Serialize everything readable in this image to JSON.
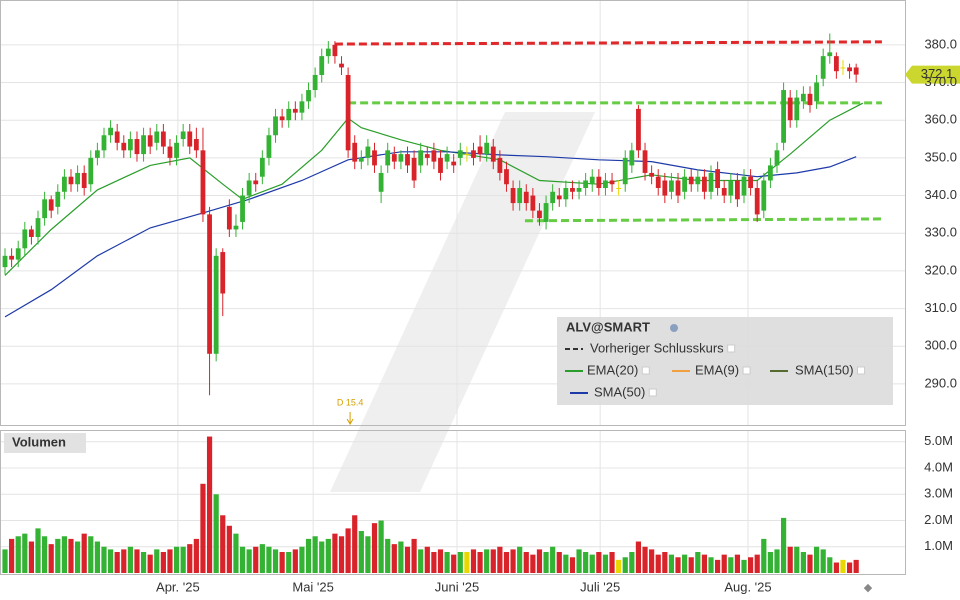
{
  "chart_data": {
    "type": "candlestick",
    "title": "ALV@SMART",
    "xlim": [
      -0.76,
      136.4
    ],
    "xticks": [
      {
        "value": 26.2,
        "label": "Apr. '25"
      },
      {
        "value": 46.7,
        "label": "Mai '25"
      },
      {
        "value": 68.5,
        "label": "Juni '25"
      },
      {
        "value": 90.2,
        "label": "Juli '25"
      },
      {
        "value": 112.6,
        "label": "Aug. '25"
      }
    ],
    "ylim": [
      279.1,
      391.9
    ],
    "yticks": [
      {
        "value": 290,
        "label": "290.0"
      },
      {
        "value": 300,
        "label": "300.0"
      },
      {
        "value": 310,
        "label": "310.0"
      },
      {
        "value": 320,
        "label": "320.0"
      },
      {
        "value": 330,
        "label": "330.0"
      },
      {
        "value": 340,
        "label": "340.0"
      },
      {
        "value": 350,
        "label": "350.0"
      },
      {
        "value": 360,
        "label": "360.0"
      },
      {
        "value": 370,
        "label": "370.0"
      },
      {
        "value": 380,
        "label": "380.0"
      }
    ],
    "grid": true,
    "up_color": "#33b233",
    "down_color": "#d9232a",
    "flat_color": "#e8d800",
    "open": [
      321,
      324,
      323,
      326,
      331,
      329,
      334,
      339,
      337,
      341,
      345,
      343,
      346,
      343,
      350,
      352,
      356,
      357,
      354,
      352,
      355,
      351,
      356,
      354,
      357,
      353,
      350,
      355,
      357,
      355,
      352,
      335,
      298,
      325,
      337,
      331,
      333,
      340,
      344,
      345,
      350,
      356,
      361,
      360,
      363,
      362,
      365,
      368,
      372,
      377,
      380,
      375,
      372,
      354,
      349,
      350,
      352,
      341,
      348,
      351,
      349,
      351,
      350,
      348,
      351,
      352,
      350,
      349,
      349,
      350,
      351,
      352,
      353,
      351,
      353,
      350,
      347,
      342,
      338,
      341,
      340,
      336,
      333,
      338,
      340,
      339,
      342,
      341,
      342,
      343,
      345,
      342,
      344,
      342,
      343,
      348,
      363,
      352,
      346,
      345,
      344,
      341,
      344,
      341,
      345,
      343,
      345,
      341,
      347,
      342,
      340,
      344,
      340,
      345,
      342,
      336,
      344,
      348,
      354,
      366,
      360,
      365,
      367,
      365,
      371,
      377,
      377,
      374,
      374,
      374
    ],
    "high": [
      326,
      326,
      328,
      333,
      332,
      336,
      341,
      340,
      343,
      347,
      347,
      348,
      348,
      352,
      354,
      358,
      360,
      359,
      356,
      357,
      357,
      358,
      358,
      359,
      359,
      355,
      356,
      359,
      359,
      358,
      358,
      337,
      326,
      326,
      339,
      335,
      342,
      346,
      346,
      352,
      358,
      363,
      363,
      365,
      365,
      367,
      370,
      374,
      379,
      381,
      381,
      377,
      374,
      356,
      352,
      355,
      354,
      348,
      354,
      353,
      352,
      353,
      352,
      354,
      353,
      354,
      352,
      353,
      351,
      354,
      353,
      354,
      356,
      356,
      355,
      352,
      349,
      344,
      344,
      343,
      342,
      338,
      340,
      343,
      342,
      344,
      344,
      344,
      346,
      347,
      347,
      346,
      346,
      344,
      352,
      354,
      364,
      354,
      348,
      347,
      346,
      346,
      346,
      347,
      347,
      347,
      347,
      348,
      349,
      344,
      346,
      346,
      347,
      347,
      344,
      346,
      350,
      354,
      370,
      368,
      368,
      369,
      369,
      372,
      379,
      383,
      378,
      376,
      375,
      375
    ],
    "low": [
      319,
      321,
      321,
      324,
      327,
      327,
      332,
      334,
      335,
      339,
      341,
      341,
      340,
      341,
      348,
      350,
      354,
      352,
      350,
      350,
      349,
      349,
      351,
      352,
      351,
      348,
      348,
      353,
      351,
      350,
      333,
      287,
      296,
      308,
      329,
      329,
      331,
      338,
      341,
      343,
      348,
      354,
      358,
      358,
      360,
      360,
      363,
      366,
      370,
      375,
      375,
      372,
      350,
      347,
      347,
      348,
      346,
      338,
      346,
      347,
      347,
      346,
      342,
      346,
      348,
      347,
      344,
      347,
      346,
      348,
      349,
      348,
      349,
      349,
      347,
      344,
      341,
      336,
      336,
      336,
      334,
      332,
      331,
      336,
      337,
      337,
      339,
      339,
      340,
      341,
      340,
      340,
      341,
      340,
      341,
      346,
      350,
      344,
      343,
      340,
      338,
      339,
      338,
      339,
      341,
      341,
      339,
      339,
      340,
      338,
      338,
      337,
      338,
      340,
      333,
      334,
      342,
      346,
      352,
      358,
      358,
      363,
      362,
      363,
      369,
      375,
      371,
      372,
      371,
      370
    ],
    "close": [
      324,
      323,
      326,
      331,
      329,
      334,
      339,
      336,
      341,
      345,
      343,
      346,
      342,
      350,
      352,
      356,
      358,
      354,
      352,
      355,
      351,
      356,
      353,
      357,
      353,
      350,
      354,
      357,
      353,
      352,
      335,
      298,
      324,
      314,
      331,
      332,
      340,
      344,
      343,
      350,
      356,
      361,
      360,
      363,
      362,
      365,
      368,
      372,
      377,
      379,
      377,
      374,
      352,
      349,
      350,
      353,
      348,
      346,
      352,
      349,
      351,
      348,
      344,
      352,
      350,
      349,
      346,
      351,
      348,
      352,
      351,
      350,
      351,
      354,
      349,
      346,
      343,
      338,
      342,
      338,
      336,
      334,
      338,
      341,
      339,
      342,
      341,
      342,
      344,
      345,
      342,
      344,
      343,
      342,
      350,
      352,
      352,
      346,
      345,
      342,
      340,
      344,
      340,
      345,
      343,
      345,
      341,
      346,
      342,
      340,
      344,
      339,
      345,
      342,
      335,
      344,
      348,
      352,
      368,
      360,
      366,
      367,
      364,
      370,
      377,
      378,
      373,
      374,
      373,
      372.1
    ],
    "volume_label": "Volumen",
    "volume_ylim": [
      0,
      5.45
    ],
    "volume_yticks": [
      {
        "value": 1,
        "label": "1.0M"
      },
      {
        "value": 2,
        "label": "2.0M"
      },
      {
        "value": 3,
        "label": "3.0M"
      },
      {
        "value": 4,
        "label": "4.0M"
      },
      {
        "value": 5,
        "label": "5.0M"
      }
    ],
    "volume": [
      0.9,
      1.3,
      1.4,
      1.5,
      1.2,
      1.7,
      1.4,
      1.1,
      1.3,
      1.4,
      1.3,
      1.2,
      1.5,
      1.4,
      1.2,
      1.0,
      0.9,
      0.8,
      0.9,
      1.0,
      0.9,
      0.8,
      0.7,
      0.9,
      0.8,
      0.9,
      1.0,
      1.0,
      1.1,
      1.3,
      3.4,
      5.2,
      3.0,
      2.2,
      1.8,
      1.5,
      1.0,
      0.9,
      1.0,
      1.1,
      1.0,
      0.9,
      0.8,
      0.8,
      0.9,
      1.0,
      1.3,
      1.4,
      1.2,
      1.3,
      1.5,
      1.4,
      1.7,
      2.2,
      1.6,
      1.4,
      1.9,
      2.0,
      1.3,
      1.1,
      1.2,
      1.0,
      1.3,
      0.9,
      1.0,
      0.8,
      0.9,
      0.8,
      0.7,
      0.8,
      0.8,
      0.9,
      0.8,
      0.9,
      0.9,
      1.0,
      0.8,
      0.9,
      1.0,
      0.8,
      0.7,
      0.9,
      0.8,
      1.0,
      0.8,
      0.7,
      0.6,
      0.9,
      0.8,
      0.7,
      0.8,
      0.7,
      0.8,
      0.5,
      0.6,
      0.8,
      1.2,
      1.0,
      0.9,
      0.7,
      0.8,
      0.7,
      0.6,
      0.7,
      0.6,
      0.8,
      0.7,
      0.6,
      0.5,
      0.7,
      0.6,
      0.7,
      0.5,
      0.6,
      0.7,
      1.3,
      0.8,
      0.9,
      2.1,
      1.0,
      1.0,
      0.8,
      0.7,
      1.0,
      0.9,
      0.6,
      0.4,
      0.5,
      0.4,
      0.5
    ],
    "series": [
      {
        "name": "Vorheriger Schlusskurs",
        "color": "#333333",
        "dashed": true
      },
      {
        "name": "EMA(20)",
        "color": "#2a9e2a",
        "x": [
          0,
          7,
          14,
          22,
          28,
          33,
          36,
          42,
          48,
          52,
          54,
          60,
          66,
          75,
          81,
          90,
          98,
          105,
          114,
          119,
          125,
          130
        ],
        "values": [
          318.8,
          331,
          341.5,
          348,
          350,
          343,
          339,
          343,
          352,
          360.5,
          358,
          354.8,
          352,
          349.5,
          344,
          343,
          345.5,
          344,
          344,
          351,
          360,
          364.5
        ]
      },
      {
        "name": "EMA(9)",
        "color": "#f0a040"
      },
      {
        "name": "SMA(150)",
        "color": "#556b2f"
      },
      {
        "name": "SMA(50)",
        "color": "#1d3aa8",
        "x": [
          0,
          7,
          14,
          22,
          30,
          37,
          45,
          52,
          60,
          67,
          75,
          82,
          90,
          98,
          105,
          114,
          120,
          125,
          129
        ],
        "values": [
          307.8,
          315,
          324,
          331.4,
          335.4,
          339,
          344,
          349.5,
          351.6,
          351.6,
          350.8,
          350.3,
          349.5,
          349,
          346.8,
          345,
          346,
          347.6,
          350.3
        ]
      }
    ],
    "trend_lines": [
      {
        "x": [
          50,
          132.9
        ],
        "values": [
          380.2,
          380.8
        ],
        "color": "#e0282a"
      },
      {
        "x": [
          52,
          132.9
        ],
        "values": [
          364.6,
          364.6
        ],
        "color": "#66cc44"
      },
      {
        "x": [
          78.8,
          132.9
        ],
        "values": [
          333.3,
          333.8
        ],
        "color": "#66cc44"
      }
    ],
    "annotation": {
      "text": "D 15.4",
      "x": 52.3
    }
  }
}
